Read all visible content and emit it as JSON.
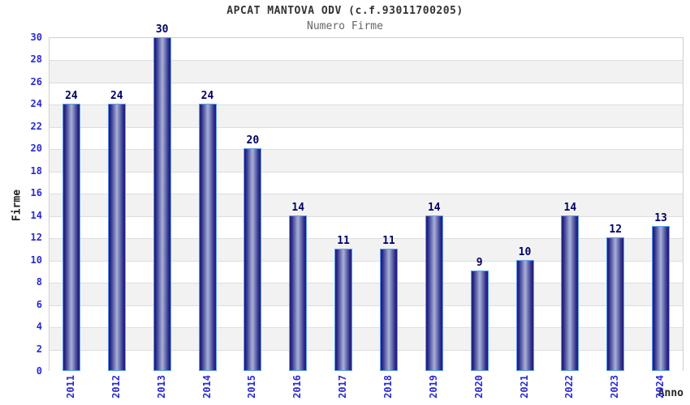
{
  "chart_data": {
    "type": "bar",
    "title": "APCAT MANTOVA ODV (c.f.93011700205)",
    "subtitle": "Numero Firme",
    "categories": [
      "2011",
      "2012",
      "2013",
      "2014",
      "2015",
      "2016",
      "2017",
      "2018",
      "2019",
      "2020",
      "2021",
      "2022",
      "2023",
      "2024"
    ],
    "values": [
      24,
      24,
      30,
      24,
      20,
      14,
      11,
      11,
      14,
      9,
      10,
      14,
      12,
      13
    ],
    "xlabel": "Anno",
    "ylabel": "Firme",
    "ylim": [
      0,
      30
    ],
    "yticks": [
      0,
      2,
      4,
      6,
      8,
      10,
      12,
      14,
      16,
      18,
      20,
      22,
      24,
      26,
      28,
      30
    ],
    "grid": true,
    "value_labels_shown": true,
    "legend": "none",
    "colors": {
      "bar_edge": "#1b1b72",
      "bar_center": "#a9b1d6",
      "bar_border": "#5f9fef",
      "tick_label": "#2a2ad2",
      "value_label": "#000066",
      "axis_title": "#222222",
      "title": "#333333",
      "subtitle": "#666666",
      "band_alt": "#f2f2f2",
      "band_main": "#ffffff",
      "gridline": "#dddddd",
      "plot_border": "#cfcfcf"
    }
  }
}
